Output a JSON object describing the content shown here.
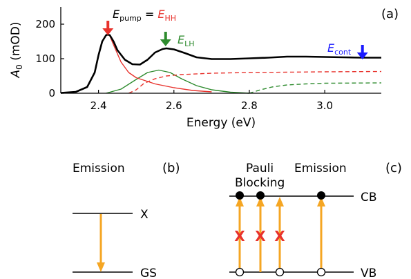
{
  "chart_data": {
    "type": "line",
    "panel_label": "(a)",
    "xlabel": "Energy (eV)",
    "ylabel": "A",
    "ylabel_sub": "0",
    "ylabel_unit": " (mOD)",
    "xlim": [
      2.3,
      3.15
    ],
    "ylim": [
      0,
      250
    ],
    "xticks": [
      2.4,
      2.6,
      2.8,
      3.0
    ],
    "xtick_labels": [
      "2.4",
      "2.6",
      "2.8",
      "3.0"
    ],
    "yticks": [
      0,
      100,
      200
    ],
    "ytick_labels": [
      "0",
      "100",
      "200"
    ],
    "grid": false,
    "series": [
      {
        "color": "#000000",
        "style": "solid",
        "x": [
          2.3,
          2.34,
          2.37,
          2.39,
          2.4,
          2.41,
          2.42,
          2.425,
          2.43,
          2.44,
          2.45,
          2.47,
          2.49,
          2.51,
          2.53,
          2.55,
          2.57,
          2.58,
          2.6,
          2.63,
          2.66,
          2.7,
          2.75,
          2.8,
          2.85,
          2.9,
          2.95,
          3.0,
          3.05,
          3.1,
          3.15
        ],
        "y": [
          1,
          4,
          18,
          60,
          110,
          150,
          168,
          170,
          168,
          150,
          125,
          97,
          84,
          83,
          97,
          118,
          128,
          130,
          127,
          116,
          104,
          99,
          99,
          101,
          103,
          106,
          106,
          105,
          104,
          103,
          103
        ]
      },
      {
        "color": "#e8322c",
        "style": "solid",
        "x": [
          2.3,
          2.34,
          2.37,
          2.39,
          2.4,
          2.41,
          2.42,
          2.425,
          2.43,
          2.44,
          2.46,
          2.48,
          2.5,
          2.55,
          2.6,
          2.65,
          2.7
        ],
        "y": [
          1,
          4,
          18,
          60,
          110,
          150,
          168,
          170,
          166,
          140,
          90,
          60,
          45,
          27,
          16,
          8,
          4
        ]
      },
      {
        "color": "#e8322c",
        "style": "dashed",
        "x": [
          2.48,
          2.5,
          2.52,
          2.55,
          2.58,
          2.62,
          2.7,
          2.8,
          3.0,
          3.15
        ],
        "y": [
          0,
          10,
          28,
          42,
          50,
          54,
          58,
          60,
          62,
          63
        ]
      },
      {
        "color": "#2e8b2e",
        "style": "solid",
        "x": [
          2.42,
          2.46,
          2.5,
          2.53,
          2.56,
          2.59,
          2.62,
          2.66,
          2.7,
          2.75,
          2.8
        ],
        "y": [
          0,
          12,
          40,
          60,
          67,
          60,
          42,
          22,
          10,
          3,
          0
        ]
      },
      {
        "color": "#2e8b2e",
        "style": "dashed",
        "x": [
          2.8,
          2.83,
          2.86,
          2.9,
          2.95,
          3.0,
          3.15
        ],
        "y": [
          0,
          10,
          18,
          24,
          27,
          29,
          30
        ]
      }
    ],
    "annotations": [
      {
        "text": "E",
        "sub": "pump",
        "mid": " = ",
        "text2": "E",
        "sub2": "HH",
        "x": 2.425,
        "color": "#e8322c"
      },
      {
        "text": "E",
        "sub": "LH",
        "x": 2.578,
        "color": "#2e8b2e"
      },
      {
        "text": "E",
        "sub": "cont",
        "x": 3.1,
        "color": "#1a1aff"
      }
    ]
  },
  "diagram_b": {
    "title": "Emission",
    "panel_label": "(b)",
    "upper_level": "X",
    "lower_level": "GS"
  },
  "diagram_c": {
    "title_left_line1": "Pauli",
    "title_left_line2": "Blocking",
    "title_right": "Emission",
    "panel_label": "(c)",
    "upper_band": "CB",
    "lower_band": "VB",
    "blocked_mark": "X"
  },
  "colors": {
    "arrow": "#f5a623",
    "blocked": "#e8322c"
  }
}
